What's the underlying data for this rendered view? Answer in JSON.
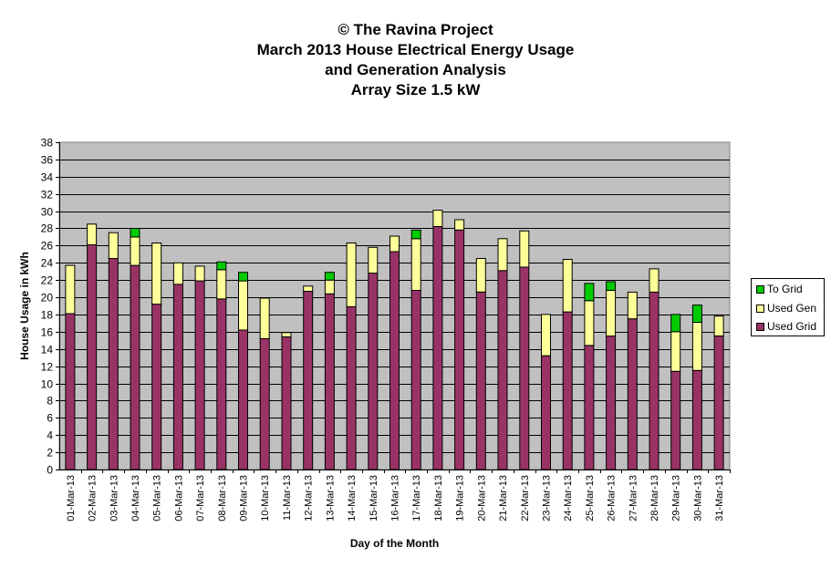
{
  "titles": {
    "line1": "© The Ravina Project",
    "line2": "March 2013 House Electrical Energy Usage",
    "line3": "and Generation Analysis",
    "line4": "Array Size 1.5 kW"
  },
  "colors": {
    "plot_bg": "#c0c0c0",
    "used_grid": "#993366",
    "used_gen": "#ffff99",
    "to_grid": "#00cc00",
    "gridline": "#000000"
  },
  "chart_data": {
    "type": "bar",
    "stacked": true,
    "title": "© The Ravina Project March 2013 House Electrical Energy Usage and Generation Analysis Array Size 1.5 kW",
    "xlabel": "Day of the Month",
    "ylabel": "House Usage in kWh",
    "ylim": [
      0,
      38
    ],
    "ytick_step": 2,
    "grid": true,
    "legend_position": "right",
    "categories": [
      "01-Mar-13",
      "02-Mar-13",
      "03-Mar-13",
      "04-Mar-13",
      "05-Mar-13",
      "06-Mar-13",
      "07-Mar-13",
      "08-Mar-13",
      "09-Mar-13",
      "10-Mar-13",
      "11-Mar-13",
      "12-Mar-13",
      "13-Mar-13",
      "14-Mar-13",
      "15-Mar-13",
      "16-Mar-13",
      "17-Mar-13",
      "18-Mar-13",
      "19-Mar-13",
      "20-Mar-13",
      "21-Mar-13",
      "22-Mar-13",
      "23-Mar-13",
      "24-Mar-13",
      "25-Mar-13",
      "26-Mar-13",
      "27-Mar-13",
      "28-Mar-13",
      "29-Mar-13",
      "30-Mar-13",
      "31-Mar-13"
    ],
    "series": [
      {
        "name": "Used Grid",
        "color_key": "used_grid",
        "values": [
          18.1,
          26.1,
          24.5,
          23.7,
          19.2,
          21.5,
          21.9,
          19.8,
          16.2,
          15.2,
          15.4,
          20.7,
          20.4,
          18.9,
          22.8,
          25.3,
          20.8,
          28.2,
          27.8,
          20.6,
          23.1,
          23.5,
          13.2,
          18.3,
          14.4,
          15.5,
          17.5,
          20.6,
          11.4,
          11.5,
          15.5
        ]
      },
      {
        "name": "Used Gen",
        "color_key": "used_gen",
        "values": [
          5.6,
          2.4,
          3.0,
          3.3,
          7.1,
          2.5,
          1.7,
          3.4,
          5.7,
          4.7,
          0.5,
          0.6,
          1.6,
          7.4,
          3.0,
          1.8,
          6.0,
          1.9,
          1.2,
          3.9,
          3.7,
          4.2,
          4.8,
          6.1,
          5.2,
          5.3,
          3.1,
          2.7,
          4.6,
          5.6,
          2.3
        ]
      },
      {
        "name": "To Grid",
        "color_key": "to_grid",
        "values": [
          0,
          0,
          0,
          1.0,
          0,
          0,
          0,
          0.9,
          1.0,
          0,
          0,
          0,
          0.9,
          0,
          0,
          0,
          1.0,
          0,
          0,
          0,
          0,
          0,
          0,
          0,
          2.0,
          1.0,
          0,
          0,
          2.0,
          2.0,
          0
        ]
      }
    ]
  }
}
